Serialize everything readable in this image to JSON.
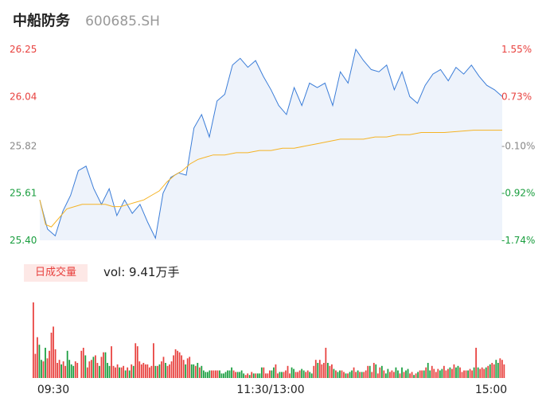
{
  "header": {
    "name": "中船防务",
    "code": "600685.SH"
  },
  "volume_panel": {
    "tab_label": "日成交量",
    "vol_label": "vol: 9.41万手"
  },
  "colors": {
    "up": "#e8413e",
    "down": "#1a9e3f",
    "price_line": "#3b7dd8",
    "avg_line": "#f5b324",
    "area_fill": "#eef3fb"
  },
  "chart_data": [
    {
      "type": "line",
      "ylim": [
        25.4,
        26.25
      ],
      "y_ticks": [
        {
          "label": "26.25",
          "value": 26.25,
          "color": "#e8413e"
        },
        {
          "label": "26.04",
          "value": 26.04,
          "color": "#e8413e"
        },
        {
          "label": "25.82",
          "value": 25.82,
          "color": "#888888"
        },
        {
          "label": "25.61",
          "value": 25.61,
          "color": "#1a9e3f"
        },
        {
          "label": "25.40",
          "value": 25.4,
          "color": "#1a9e3f"
        }
      ],
      "pct_ticks": [
        {
          "label": "1.55%",
          "value": 26.25,
          "color": "#e8413e"
        },
        {
          "label": "0.73%",
          "value": 26.04,
          "color": "#e8413e"
        },
        {
          "label": "-0.10%",
          "value": 25.82,
          "color": "#888888"
        },
        {
          "label": "-0.92%",
          "value": 25.61,
          "color": "#1a9e3f"
        },
        {
          "label": "-1.74%",
          "value": 25.4,
          "color": "#1a9e3f"
        }
      ],
      "x_ticks": [
        {
          "label": "09:30",
          "index": 0
        },
        {
          "label": "11:30/13:00",
          "index": 120
        },
        {
          "label": "15:00",
          "index": 240
        }
      ],
      "series": [
        {
          "values": [
            25.58,
            25.45,
            25.42,
            25.53,
            25.6,
            25.71,
            25.73,
            25.63,
            25.56,
            25.63,
            25.51,
            25.58,
            25.52,
            25.56,
            25.48,
            25.41,
            25.61,
            25.68,
            25.7,
            25.69,
            25.9,
            25.96,
            25.86,
            26.02,
            26.05,
            26.18,
            26.21,
            26.17,
            26.2,
            26.13,
            26.07,
            26.0,
            25.96,
            26.08,
            26.0,
            26.1,
            26.08,
            26.1,
            26.0,
            26.15,
            26.1,
            26.25,
            26.2,
            26.16,
            26.15,
            26.18,
            26.07,
            26.15,
            26.04,
            26.01,
            26.09,
            26.14,
            26.16,
            26.11,
            26.17,
            26.14,
            26.18,
            26.13,
            26.09,
            26.07,
            26.04
          ],
          "x_index": [
            0,
            4,
            8,
            12,
            16,
            20,
            24,
            28,
            32,
            36,
            40,
            44,
            48,
            52,
            56,
            60,
            64,
            68,
            72,
            76,
            80,
            84,
            88,
            92,
            96,
            100,
            104,
            108,
            112,
            116,
            120,
            124,
            128,
            132,
            136,
            140,
            144,
            148,
            152,
            156,
            160,
            164,
            168,
            172,
            176,
            180,
            184,
            188,
            192,
            196,
            200,
            204,
            208,
            212,
            216,
            220,
            224,
            228,
            232,
            236,
            240
          ]
        },
        {
          "values": [
            25.58,
            25.47,
            25.46,
            25.5,
            25.54,
            25.55,
            25.56,
            25.56,
            25.56,
            25.56,
            25.55,
            25.55,
            25.56,
            25.57,
            25.58,
            25.6,
            25.62,
            25.66,
            25.69,
            25.71,
            25.74,
            25.76,
            25.77,
            25.78,
            25.78,
            25.79,
            25.79,
            25.8,
            25.8,
            25.81,
            25.81,
            25.82,
            25.83,
            25.84,
            25.85,
            25.85,
            25.85,
            25.86,
            25.86,
            25.87,
            25.87,
            25.88,
            25.88,
            25.88,
            25.89,
            25.89
          ],
          "x_index": [
            0,
            3,
            6,
            10,
            14,
            18,
            22,
            26,
            30,
            34,
            38,
            42,
            46,
            50,
            54,
            58,
            62,
            66,
            70,
            74,
            78,
            82,
            86,
            90,
            96,
            102,
            108,
            114,
            120,
            126,
            132,
            138,
            144,
            150,
            156,
            162,
            168,
            174,
            180,
            186,
            192,
            198,
            204,
            210,
            225,
            240
          ]
        }
      ]
    },
    {
      "type": "bar",
      "ylim": [
        0,
        100
      ],
      "values": [
        100,
        32,
        54,
        44,
        24,
        22,
        40,
        26,
        36,
        60,
        68,
        38,
        20,
        24,
        18,
        22,
        16,
        36,
        24,
        18,
        16,
        22,
        20,
        0,
        36,
        40,
        30,
        14,
        22,
        24,
        28,
        30,
        20,
        16,
        28,
        34,
        34,
        20,
        16,
        42,
        16,
        14,
        18,
        14,
        14,
        16,
        10,
        14,
        10,
        18,
        16,
        46,
        42,
        22,
        18,
        20,
        18,
        18,
        14,
        16,
        46,
        16,
        16,
        18,
        22,
        28,
        20,
        16,
        18,
        22,
        30,
        38,
        36,
        34,
        30,
        24,
        18,
        26,
        28,
        18,
        18,
        16,
        20,
        14,
        16,
        10,
        8,
        8,
        10,
        10,
        10,
        10,
        10,
        10,
        6,
        6,
        8,
        10,
        10,
        14,
        10,
        8,
        8,
        8,
        10,
        6,
        4,
        6,
        4,
        8,
        6,
        6,
        6,
        6,
        14,
        14,
        6,
        6,
        10,
        10,
        14,
        18,
        6,
        8,
        8,
        8,
        10,
        16,
        6,
        14,
        12,
        8,
        8,
        10,
        12,
        10,
        8,
        10,
        8,
        6,
        16,
        24,
        20,
        24,
        18,
        20,
        40,
        20,
        16,
        18,
        12,
        10,
        8,
        10,
        10,
        8,
        6,
        6,
        8,
        10,
        14,
        8,
        10,
        8,
        8,
        8,
        10,
        16,
        16,
        8,
        20,
        18,
        6,
        14,
        16,
        10,
        6,
        12,
        8,
        10,
        8,
        14,
        10,
        6,
        14,
        8,
        10,
        12,
        6,
        8,
        4,
        6,
        8,
        10,
        10,
        10,
        14,
        20,
        10,
        16,
        12,
        8,
        12,
        10,
        12,
        16,
        10,
        12,
        14,
        12,
        18,
        14,
        16,
        14,
        8,
        10,
        10,
        10,
        12,
        10,
        14,
        40,
        14,
        12,
        14,
        12,
        14,
        16,
        18,
        20,
        18,
        24,
        20,
        26,
        24,
        18
      ],
      "up": [
        1,
        1,
        1,
        0,
        0,
        1,
        0,
        1,
        1,
        1,
        1,
        1,
        1,
        1,
        0,
        1,
        1,
        0,
        0,
        0,
        0,
        1,
        1,
        1,
        1,
        1,
        0,
        1,
        1,
        1,
        0,
        1,
        1,
        0,
        1,
        1,
        0,
        0,
        0,
        1,
        1,
        1,
        1,
        0,
        1,
        1,
        0,
        1,
        0,
        1,
        0,
        1,
        1,
        1,
        1,
        1,
        1,
        1,
        1,
        1,
        1,
        0,
        1,
        0,
        1,
        1,
        0,
        1,
        1,
        1,
        1,
        1,
        1,
        1,
        1,
        1,
        0,
        1,
        1,
        0,
        0,
        1,
        0,
        1,
        0,
        0,
        0,
        0,
        0,
        1,
        1,
        1,
        1,
        0,
        0,
        0,
        0,
        0,
        0,
        0,
        1,
        1,
        0,
        0,
        0,
        0,
        1,
        1,
        0,
        1,
        0,
        1,
        0,
        0,
        0,
        1,
        1,
        1,
        1,
        0,
        0,
        1,
        1,
        0,
        0,
        1,
        1,
        1,
        1,
        0,
        0,
        1,
        1,
        1,
        0,
        0,
        1,
        1,
        0,
        0,
        1,
        1,
        0,
        1,
        1,
        1,
        1,
        0,
        1,
        1,
        0,
        1,
        0,
        0,
        1,
        1,
        0,
        1,
        0,
        0,
        1,
        1,
        0,
        1,
        0,
        1,
        1,
        1,
        0,
        1,
        1,
        0,
        1,
        1,
        0,
        1,
        0,
        0,
        1,
        1,
        1,
        0,
        0,
        1,
        0,
        1,
        0,
        0,
        1,
        1,
        0,
        1,
        0,
        1,
        1,
        0,
        1,
        0,
        0,
        1,
        1,
        1,
        1,
        0,
        0,
        1,
        1,
        1,
        0,
        1,
        1,
        0,
        0,
        1,
        1,
        1,
        1,
        0,
        1,
        1,
        0,
        1,
        0,
        1,
        1,
        1,
        0,
        1,
        0,
        1,
        1,
        0,
        0,
        1,
        1,
        1,
        1,
        0,
        1,
        0
      ]
    }
  ]
}
